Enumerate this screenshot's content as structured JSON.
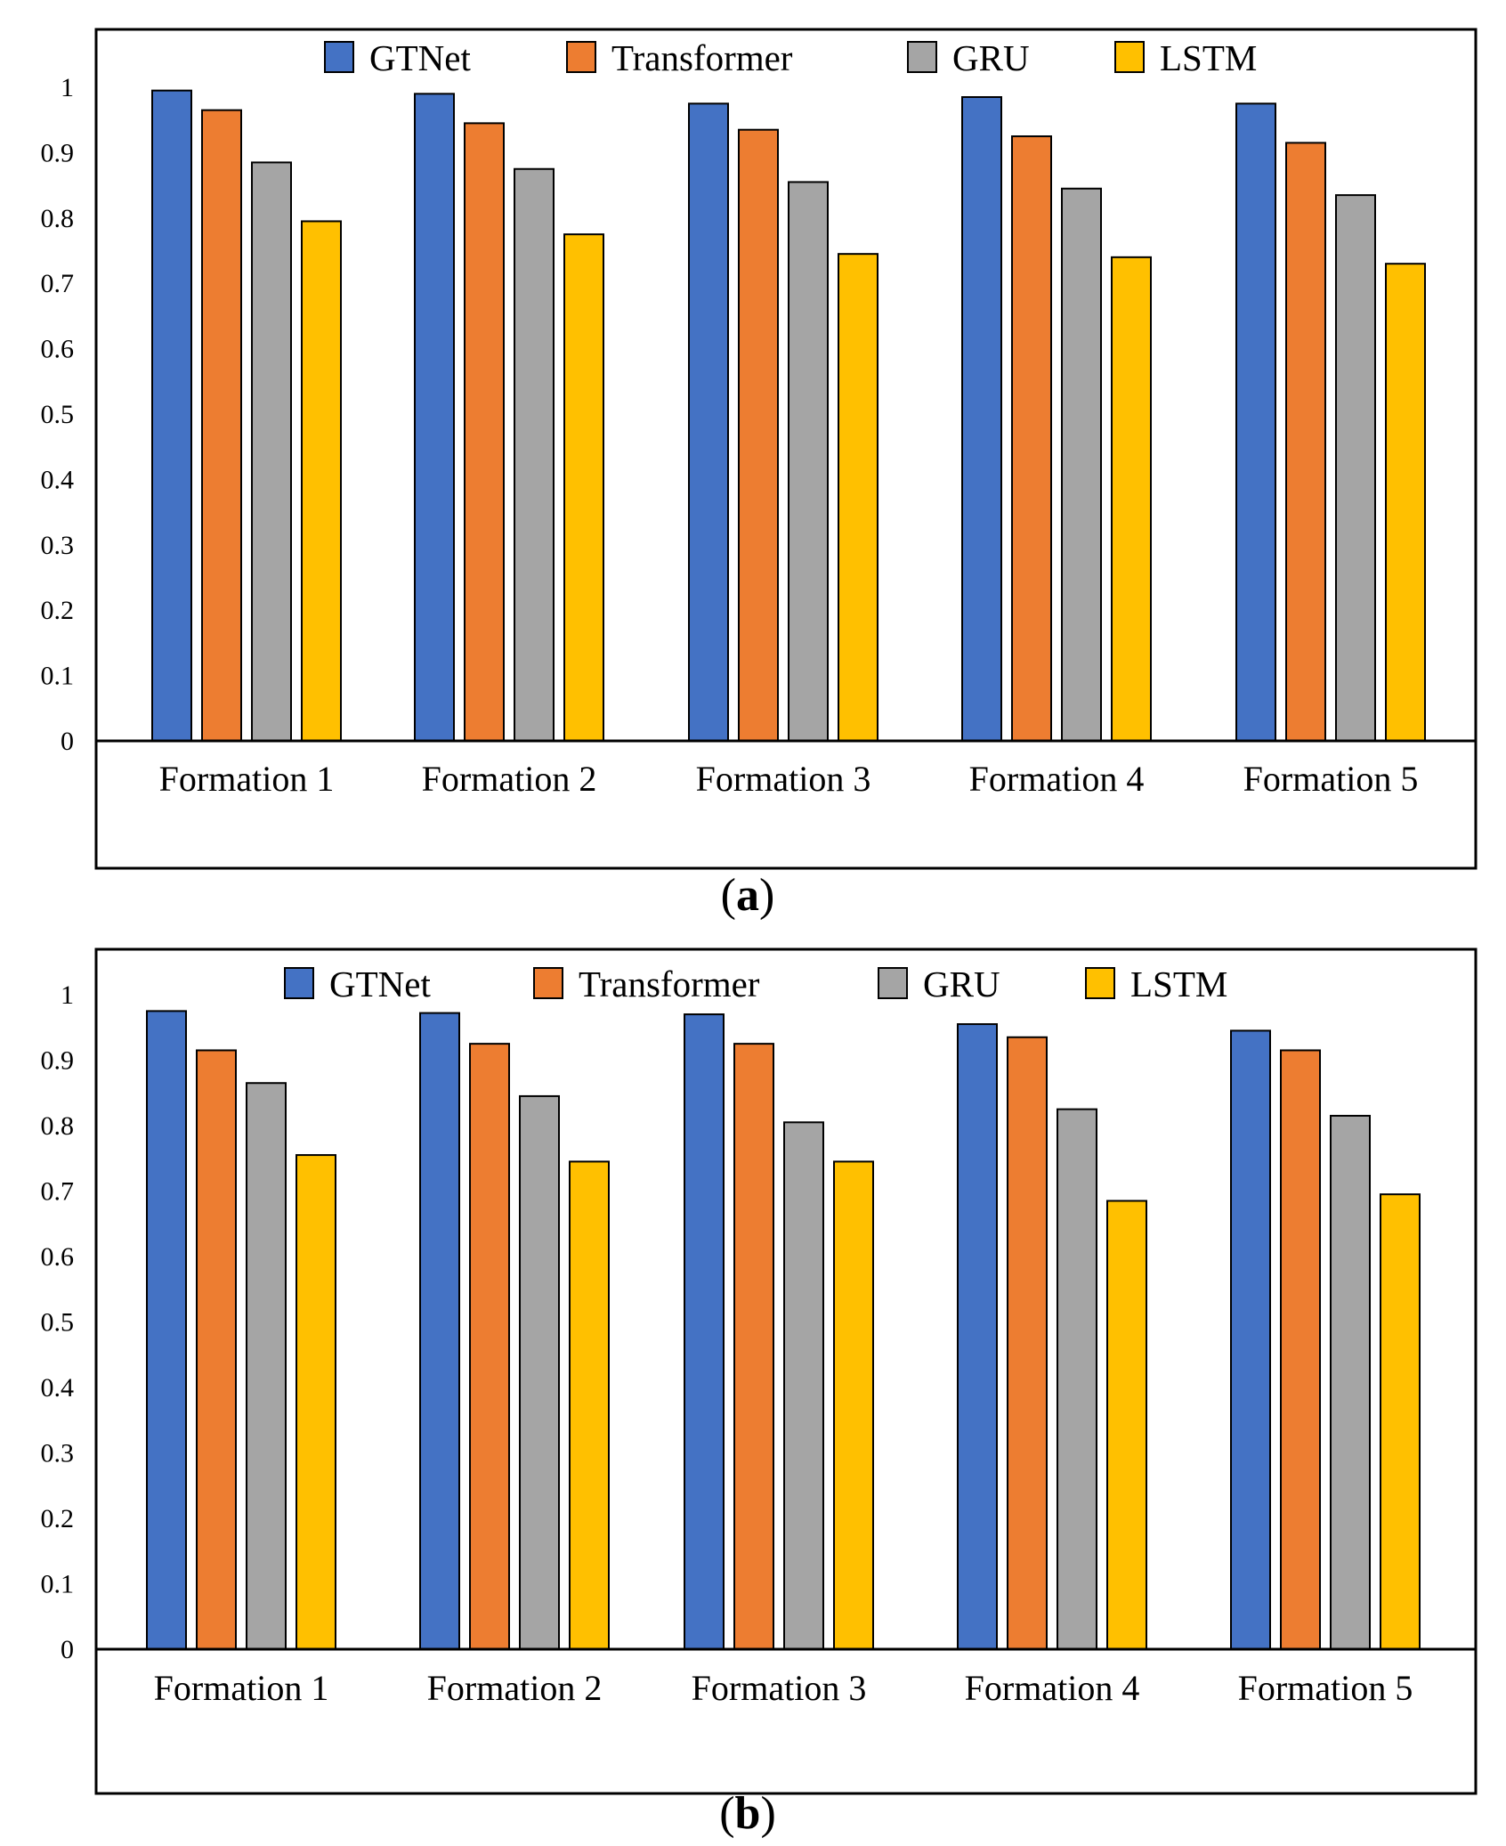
{
  "chart_data": [
    {
      "type": "bar",
      "panel_label": "(a)",
      "panel_letter": "a",
      "categories": [
        "Formation 1",
        "Formation 2",
        "Formation 3",
        "Formation 4",
        "Formation 5"
      ],
      "series": [
        {
          "name": "GTNet",
          "color": "#4472C4",
          "values": [
            0.995,
            0.99,
            0.975,
            0.985,
            0.975
          ]
        },
        {
          "name": "Transformer",
          "color": "#ED7D31",
          "values": [
            0.965,
            0.945,
            0.935,
            0.925,
            0.915
          ]
        },
        {
          "name": "GRU",
          "color": "#A5A5A5",
          "values": [
            0.885,
            0.875,
            0.855,
            0.845,
            0.835
          ]
        },
        {
          "name": "LSTM",
          "color": "#FFC000",
          "values": [
            0.795,
            0.775,
            0.745,
            0.74,
            0.73
          ]
        }
      ],
      "yticks": [
        "0",
        "0.1",
        "0.2",
        "0.3",
        "0.4",
        "0.5",
        "0.6",
        "0.7",
        "0.8",
        "0.9",
        "1"
      ],
      "ylim": [
        0,
        1.0
      ],
      "grid": false,
      "legend": "top-center"
    },
    {
      "type": "bar",
      "panel_label": "(b)",
      "panel_letter": "b",
      "categories": [
        "Formation 1",
        "Formation 2",
        "Formation 3",
        "Formation 4",
        "Formation 5"
      ],
      "series": [
        {
          "name": "GTNet",
          "color": "#4472C4",
          "values": [
            0.975,
            0.972,
            0.97,
            0.955,
            0.945
          ]
        },
        {
          "name": "Transformer",
          "color": "#ED7D31",
          "values": [
            0.915,
            0.925,
            0.925,
            0.935,
            0.915
          ]
        },
        {
          "name": "GRU",
          "color": "#A5A5A5",
          "values": [
            0.865,
            0.845,
            0.805,
            0.825,
            0.815
          ]
        },
        {
          "name": "LSTM",
          "color": "#FFC000",
          "values": [
            0.755,
            0.745,
            0.745,
            0.685,
            0.695
          ]
        }
      ],
      "yticks": [
        "0",
        "0.1",
        "0.2",
        "0.3",
        "0.4",
        "0.5",
        "0.6",
        "0.7",
        "0.8",
        "0.9",
        "1"
      ],
      "ylim": [
        0,
        1.0
      ],
      "grid": false,
      "legend": "top-center"
    }
  ]
}
